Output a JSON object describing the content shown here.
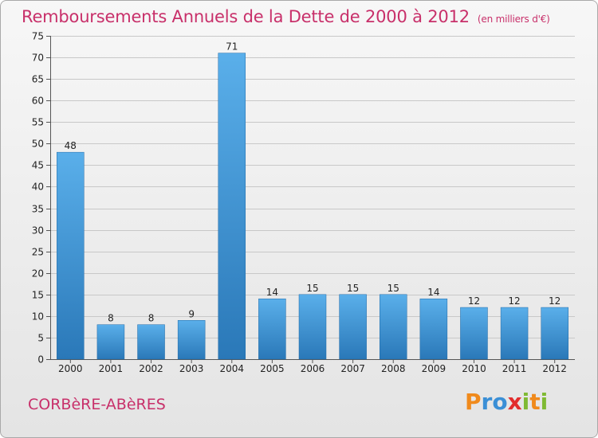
{
  "header": {
    "title": "Remboursements Annuels de la Dette de 2000 à 2012",
    "subtitle": "(en milliers d'€)"
  },
  "footer": {
    "town": "CORBèRE-ABèRES",
    "logo": "Proxiti"
  },
  "colors": {
    "title": "#c8306a",
    "bar_top": "#5aafea",
    "bar_bottom": "#2a78b8",
    "grid": "#c8c8c8"
  },
  "chart_data": {
    "type": "bar",
    "title": "Remboursements Annuels de la Dette de 2000 à 2012",
    "subtitle": "(en milliers d'€)",
    "xlabel": "",
    "ylabel": "",
    "categories": [
      "2000",
      "2001",
      "2002",
      "2003",
      "2004",
      "2005",
      "2006",
      "2007",
      "2008",
      "2009",
      "2010",
      "2011",
      "2012"
    ],
    "values": [
      48,
      8,
      8,
      9,
      71,
      14,
      15,
      15,
      15,
      14,
      12,
      12,
      12
    ],
    "ylim": [
      0,
      75
    ],
    "yticks": [
      0,
      5,
      10,
      15,
      20,
      25,
      30,
      35,
      40,
      45,
      50,
      55,
      60,
      65,
      70,
      75
    ],
    "grid": true,
    "legend": "none"
  }
}
